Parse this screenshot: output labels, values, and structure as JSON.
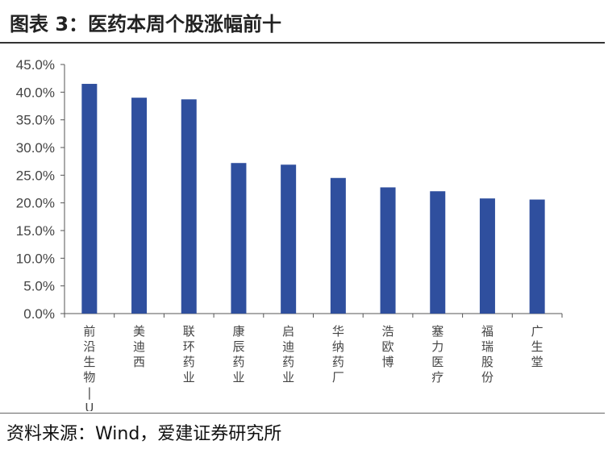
{
  "header": {
    "title": "图表 3：医药本周个股涨幅前十"
  },
  "footer": {
    "source": "资料来源：Wind，爱建证券研究所"
  },
  "chart_data": {
    "type": "bar",
    "title": "",
    "xlabel": "",
    "ylabel": "",
    "ylim": [
      0,
      45
    ],
    "y_ticks": [
      "0.0%",
      "5.0%",
      "10.0%",
      "15.0%",
      "20.0%",
      "25.0%",
      "30.0%",
      "35.0%",
      "40.0%",
      "45.0%"
    ],
    "categories": [
      "前沿生物-U",
      "美迪西",
      "联环药业",
      "康辰药业",
      "启迪药业",
      "华纳药厂",
      "浩欧博",
      "塞力医疗",
      "福瑞股份",
      "广生堂"
    ],
    "category_labels": [
      "前沿生物-U",
      "美迪西",
      "联环药业",
      "康辰药业",
      "启迪药业",
      "华纳药厂",
      "浩欧博",
      "塞力医疗",
      "福瑞股份",
      "广生堂"
    ],
    "values": [
      41.5,
      39.0,
      38.7,
      27.2,
      26.9,
      24.5,
      22.8,
      22.1,
      20.8,
      20.6
    ],
    "unit": "%",
    "bar_color": "#2f4f9e",
    "grid": false,
    "legend": "none"
  }
}
